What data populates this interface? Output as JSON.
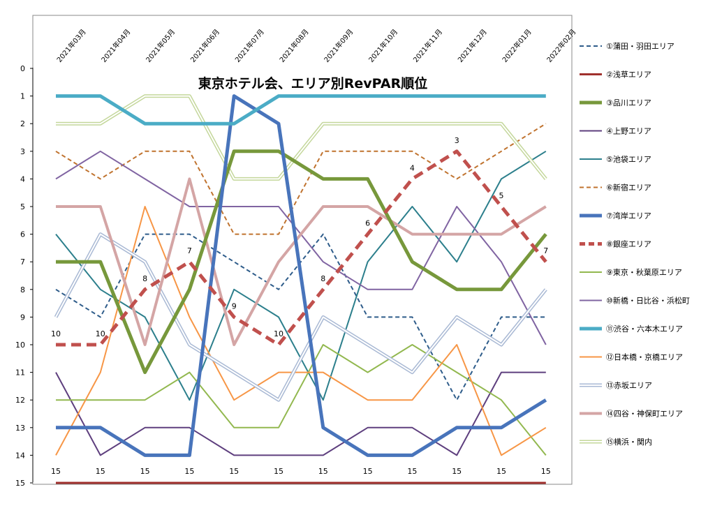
{
  "chart_data": {
    "type": "line",
    "title": "東京ホテル会、エリア別RevPAR順位",
    "categories": [
      "2021年03月",
      "2021年04月",
      "2021年05月",
      "2021年06月",
      "2021年07月",
      "2021年08月",
      "2021年09月",
      "2021年10月",
      "2021年11月",
      "2021年12月",
      "2022年01月",
      "2022年02月"
    ],
    "ylim": [
      0,
      15
    ],
    "y_reversed": true,
    "y_ticks": [
      0,
      1,
      2,
      3,
      4,
      5,
      6,
      7,
      8,
      9,
      10,
      11,
      12,
      13,
      14,
      15
    ],
    "grid": false,
    "legend_position": "right",
    "bottom_labels": [
      "15",
      "15",
      "15",
      "15",
      "15",
      "15",
      "15",
      "15",
      "15",
      "15",
      "15",
      "15"
    ],
    "series": [
      {
        "name": "①蒲田・羽田エリア",
        "color": "#2E5C8A",
        "style": "dashed",
        "width": 2,
        "values": [
          8,
          9,
          6,
          6,
          7,
          8,
          6,
          9,
          9,
          12,
          9,
          9
        ]
      },
      {
        "name": "②浅草エリア",
        "color": "#A0302D",
        "style": "solid",
        "width": 3,
        "values": [
          15,
          15,
          15,
          15,
          15,
          15,
          15,
          15,
          15,
          15,
          15,
          15
        ]
      },
      {
        "name": "③品川エリア",
        "color": "#77983B",
        "style": "solid",
        "width": 5,
        "values": [
          7,
          7,
          11,
          8,
          3,
          3,
          4,
          4,
          7,
          8,
          8,
          6
        ]
      },
      {
        "name": "④上野エリア",
        "color": "#5E3F7E",
        "style": "solid",
        "width": 2,
        "values": [
          11,
          14,
          13,
          13,
          14,
          14,
          14,
          13,
          13,
          14,
          11,
          11
        ]
      },
      {
        "name": "⑤池袋エリア",
        "color": "#2C7F8C",
        "style": "solid",
        "width": 2,
        "values": [
          6,
          8,
          9,
          12,
          8,
          9,
          12,
          7,
          5,
          7,
          4,
          3
        ]
      },
      {
        "name": "⑥新宿エリア",
        "color": "#C0732F",
        "style": "dashed",
        "width": 2,
        "values": [
          3,
          4,
          3,
          3,
          6,
          6,
          3,
          3,
          3,
          4,
          3,
          2
        ]
      },
      {
        "name": "⑦湾岸エリア",
        "color": "#4874BB",
        "style": "solid",
        "width": 5,
        "values": [
          13,
          13,
          14,
          14,
          1,
          2,
          13,
          14,
          14,
          13,
          13,
          12
        ]
      },
      {
        "name": "⑧銀座エリア",
        "color": "#C0504D",
        "style": "dashed",
        "width": 5,
        "values": [
          10,
          10,
          8,
          7,
          9,
          10,
          8,
          6,
          4,
          3,
          5,
          7
        ]
      },
      {
        "name": "⑨東京・秋葉原エリア",
        "color": "#92B84F",
        "style": "solid",
        "width": 2,
        "values": [
          12,
          12,
          12,
          11,
          13,
          13,
          10,
          11,
          10,
          11,
          12,
          14
        ]
      },
      {
        "name": "⑩新橋・日比谷・浜松町",
        "color": "#8064A2",
        "style": "solid",
        "width": 2,
        "values": [
          4,
          3,
          4,
          5,
          5,
          5,
          7,
          8,
          8,
          5,
          7,
          10
        ]
      },
      {
        "name": "⑪渋谷・六本木エリア",
        "color": "#4BACC6",
        "style": "solid",
        "width": 5,
        "values": [
          1,
          1,
          2,
          2,
          2,
          1,
          1,
          1,
          1,
          1,
          1,
          1
        ]
      },
      {
        "name": "⑫日本橋・京橋エリア",
        "color": "#F79646",
        "style": "solid",
        "width": 2,
        "values": [
          14,
          11,
          5,
          9,
          12,
          11,
          11,
          12,
          12,
          10,
          14,
          13
        ]
      },
      {
        "name": "⑬赤坂エリア",
        "color": "#A9B9D4",
        "style": "double",
        "width": 2,
        "values": [
          9,
          6,
          7,
          10,
          11,
          12,
          9,
          10,
          11,
          9,
          10,
          8
        ]
      },
      {
        "name": "⑭四谷・神保町エリア",
        "color": "#D4A5A5",
        "style": "solid",
        "width": 4,
        "values": [
          5,
          5,
          10,
          4,
          10,
          7,
          5,
          5,
          6,
          6,
          6,
          5
        ]
      },
      {
        "name": "⑮横浜・関内",
        "color": "#C4D79B",
        "style": "double",
        "width": 2,
        "values": [
          2,
          2,
          1,
          1,
          4,
          4,
          2,
          2,
          2,
          2,
          2,
          4
        ]
      }
    ],
    "data_labels": {
      "series": "⑧銀座エリア",
      "labels": [
        "10",
        "10",
        "8",
        "7",
        "9",
        "10",
        "8",
        "6",
        "4",
        "3",
        "5",
        "7"
      ]
    }
  }
}
